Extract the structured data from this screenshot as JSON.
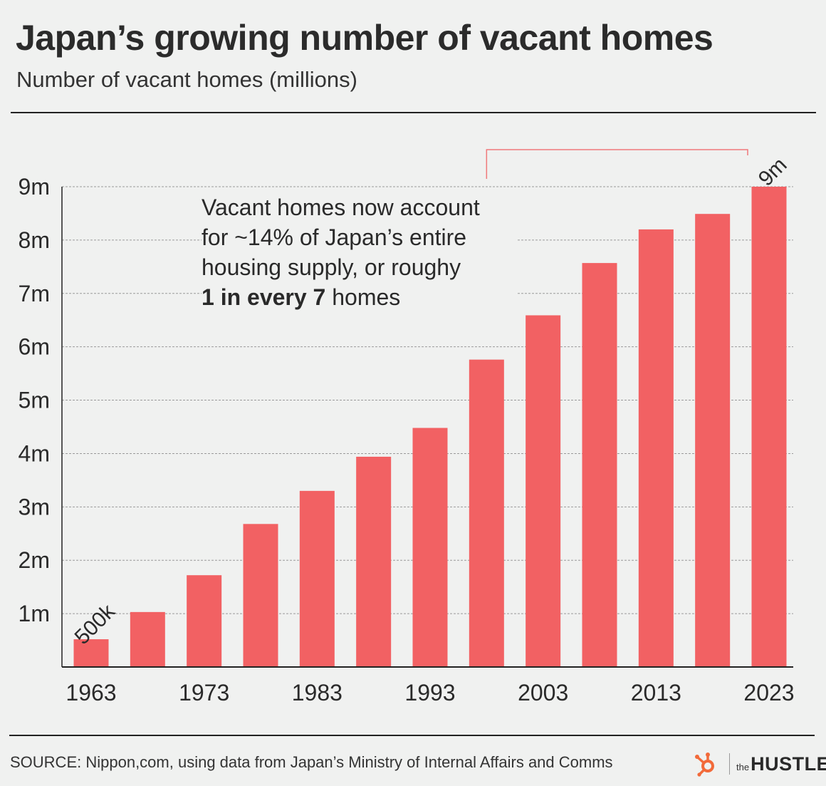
{
  "header": {
    "title": "Japan’s growing number of vacant homes",
    "subtitle": "Number of vacant homes (millions)"
  },
  "annotation": {
    "line1": "Vacant homes now account",
    "line2": "for ~14% of Japan’s entire",
    "line3": "housing supply, or roughy",
    "bold": "1 in every 7",
    "tail": " homes"
  },
  "footer": {
    "source": "SOURCE: Nippon,com, using data from Japan’s Ministry of Internal Affairs and Comms",
    "logo_the": "the",
    "logo_name": "HUSTLE"
  },
  "colors": {
    "bar": "#f26163",
    "grid": "#9a9a9a",
    "bracket": "#f0787a",
    "text": "#2a2a2a"
  },
  "chart_data": {
    "type": "bar",
    "categories": [
      "1963",
      "1968",
      "1973",
      "1978",
      "1983",
      "1988",
      "1993",
      "1998",
      "2003",
      "2008",
      "2013",
      "2018",
      "2023"
    ],
    "values": [
      0.52,
      1.03,
      1.72,
      2.68,
      3.3,
      3.94,
      4.48,
      5.76,
      6.59,
      7.57,
      8.2,
      8.49,
      9.0
    ],
    "x_tick_labels": [
      "1963",
      "1973",
      "1983",
      "1993",
      "2003",
      "2013",
      "2023"
    ],
    "y_ticks": [
      1,
      2,
      3,
      4,
      5,
      6,
      7,
      8,
      9
    ],
    "y_tick_labels": [
      "1m",
      "2m",
      "3m",
      "4m",
      "5m",
      "6m",
      "7m",
      "8m",
      "9m"
    ],
    "ylim": [
      0,
      9
    ],
    "grid": true,
    "data_labels": [
      {
        "category": "1963",
        "text": "500k"
      },
      {
        "category": "2023",
        "text": "9m"
      }
    ],
    "xlabel": "",
    "ylabel": ""
  }
}
